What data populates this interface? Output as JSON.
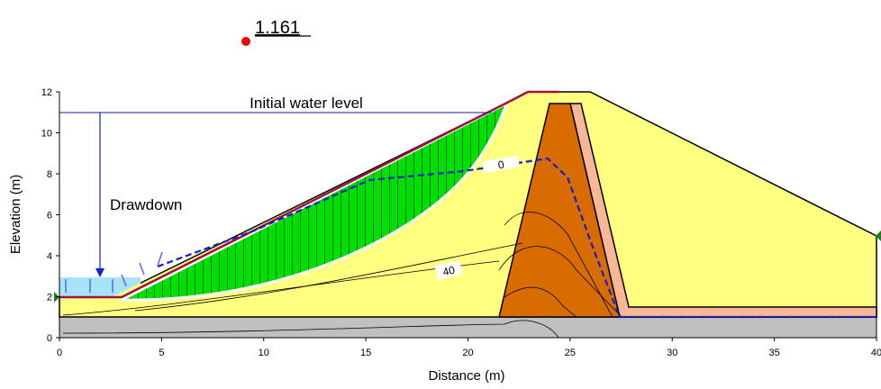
{
  "chart_data": {
    "type": "slope-stability",
    "factor_of_safety": "1.161",
    "annotations": [
      "Initial water level",
      "Drawdown"
    ],
    "contour_labels": [
      "40",
      "0"
    ],
    "x_label": "Distance (m)",
    "y_label": "Elevation (m)",
    "xlim": [
      0,
      40
    ],
    "ylim": [
      0,
      12
    ],
    "xticks": [
      0,
      5,
      10,
      15,
      20,
      25,
      30,
      35,
      40
    ],
    "yticks": [
      0,
      2,
      4,
      6,
      8,
      10,
      12
    ]
  }
}
